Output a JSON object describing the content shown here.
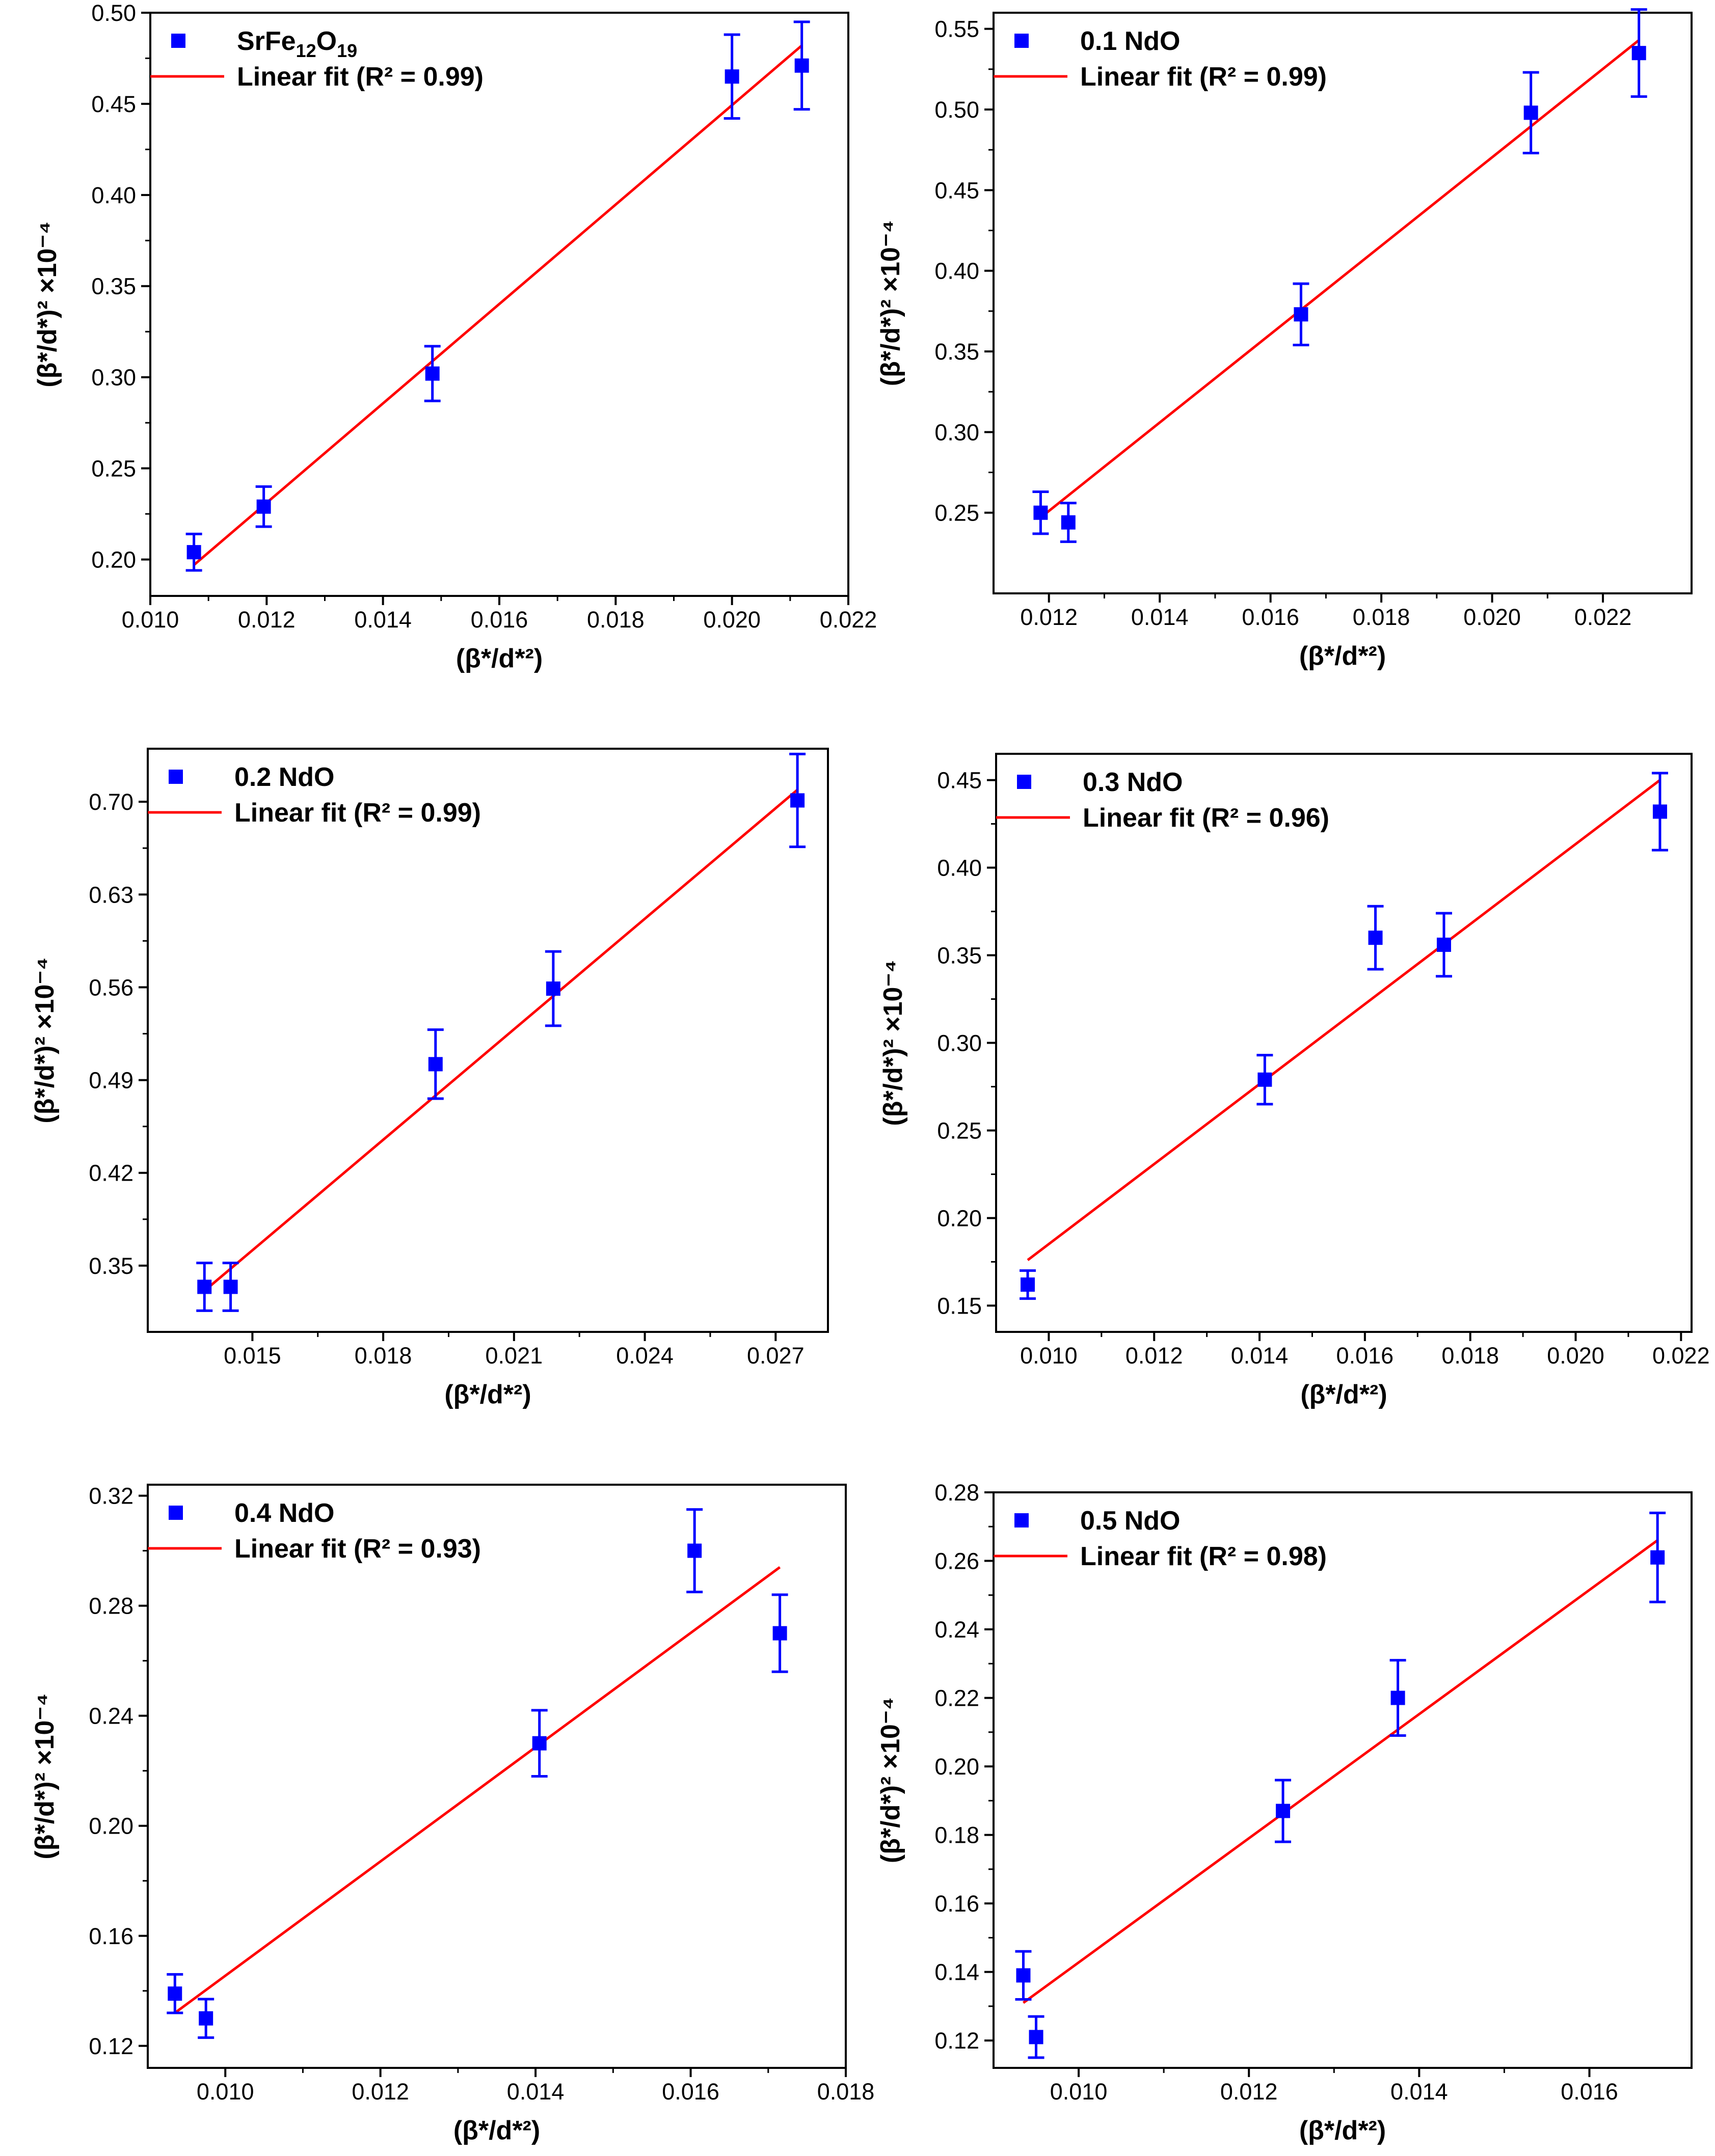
{
  "figure": {
    "x_axis_label": "(β*/d*²)",
    "y_axis_label": "(β*/d*)² ×10⁻⁴"
  },
  "colors": {
    "marker": "#0000ff",
    "fit_line": "#ff0000",
    "axes": "#000000"
  },
  "chart_data": [
    {
      "type": "scatter",
      "title": "",
      "xlabel": "(β*/d*²)",
      "ylabel": "(β*/d*)² ×10⁻⁴",
      "legend": {
        "series_name": "SrFe12O19",
        "series_base": "SrFe",
        "sub1": "12",
        "mid": "O",
        "sub2": "19",
        "fit_name": "Linear fit (R² = 0.99)"
      },
      "xlim": [
        0.01,
        0.022
      ],
      "ylim": [
        0.18,
        0.5
      ],
      "xticks": [
        0.01,
        0.012,
        0.014,
        0.016,
        0.018,
        0.02,
        0.022
      ],
      "xtick_labels": [
        "0.010",
        "0.012",
        "0.014",
        "0.016",
        "0.018",
        "0.020",
        "0.022"
      ],
      "yticks": [
        0.2,
        0.25,
        0.3,
        0.35,
        0.4,
        0.45,
        0.5
      ],
      "ytick_labels": [
        "0.20",
        "0.25",
        "0.30",
        "0.35",
        "0.40",
        "0.45",
        "0.50"
      ],
      "points": [
        {
          "x": 0.01075,
          "y": 0.204,
          "err": 0.01
        },
        {
          "x": 0.01195,
          "y": 0.229,
          "err": 0.011
        },
        {
          "x": 0.01485,
          "y": 0.302,
          "err": 0.015
        },
        {
          "x": 0.02,
          "y": 0.465,
          "err": 0.023
        },
        {
          "x": 0.0212,
          "y": 0.471,
          "err": 0.024
        }
      ],
      "fit": {
        "x": [
          0.01075,
          0.0212
        ],
        "y": [
          0.197,
          0.482
        ]
      }
    },
    {
      "type": "scatter",
      "title": "",
      "xlabel": "(β*/d*²)",
      "ylabel": "(β*/d*)² ×10⁻⁴",
      "legend": {
        "series_name": "0.1 NdO",
        "fit_name": "Linear fit (R² = 0.99)"
      },
      "xlim": [
        0.011,
        0.0236
      ],
      "ylim": [
        0.2,
        0.56
      ],
      "xticks": [
        0.012,
        0.014,
        0.016,
        0.018,
        0.02,
        0.022
      ],
      "xtick_labels": [
        "0.012",
        "0.014",
        "0.016",
        "0.018",
        "0.020",
        "0.022"
      ],
      "yticks": [
        0.25,
        0.3,
        0.35,
        0.4,
        0.45,
        0.5,
        0.55
      ],
      "ytick_labels": [
        "0.25",
        "0.30",
        "0.35",
        "0.40",
        "0.45",
        "0.50",
        "0.55"
      ],
      "points": [
        {
          "x": 0.01185,
          "y": 0.25,
          "err": 0.013
        },
        {
          "x": 0.01235,
          "y": 0.244,
          "err": 0.012
        },
        {
          "x": 0.01655,
          "y": 0.373,
          "err": 0.019
        },
        {
          "x": 0.0207,
          "y": 0.498,
          "err": 0.025
        },
        {
          "x": 0.02265,
          "y": 0.535,
          "err": 0.027
        }
      ],
      "fit": {
        "x": [
          0.01185,
          0.02265
        ],
        "y": [
          0.247,
          0.543
        ]
      }
    },
    {
      "type": "scatter",
      "title": "",
      "xlabel": "(β*/d*²)",
      "ylabel": "(β*/d*)² ×10⁻⁴",
      "legend": {
        "series_name": "0.2 NdO",
        "fit_name": "Linear fit (R² = 0.99)"
      },
      "xlim": [
        0.0126,
        0.0282
      ],
      "ylim": [
        0.3,
        0.74
      ],
      "xticks": [
        0.015,
        0.018,
        0.021,
        0.024,
        0.027
      ],
      "xtick_labels": [
        "0.015",
        "0.018",
        "0.021",
        "0.024",
        "0.027"
      ],
      "yticks": [
        0.35,
        0.42,
        0.49,
        0.56,
        0.63,
        0.7
      ],
      "ytick_labels": [
        "0.35",
        "0.42",
        "0.49",
        "0.56",
        "0.63",
        "0.70"
      ],
      "points": [
        {
          "x": 0.0139,
          "y": 0.334,
          "err": 0.018
        },
        {
          "x": 0.0145,
          "y": 0.334,
          "err": 0.018
        },
        {
          "x": 0.0192,
          "y": 0.502,
          "err": 0.026
        },
        {
          "x": 0.0219,
          "y": 0.559,
          "err": 0.028
        },
        {
          "x": 0.0275,
          "y": 0.701,
          "err": 0.035
        }
      ],
      "fit": {
        "x": [
          0.0139,
          0.0275
        ],
        "y": [
          0.331,
          0.709
        ]
      }
    },
    {
      "type": "scatter",
      "title": "",
      "xlabel": "(β*/d*²)",
      "ylabel": "(β*/d*)² ×10⁻⁴",
      "legend": {
        "series_name": "0.3 NdO",
        "fit_name": "Linear fit (R² = 0.96)"
      },
      "xlim": [
        0.009,
        0.0222
      ],
      "ylim": [
        0.135,
        0.465
      ],
      "xticks": [
        0.01,
        0.012,
        0.014,
        0.016,
        0.018,
        0.02,
        0.022
      ],
      "xtick_labels": [
        "0.010",
        "0.012",
        "0.014",
        "0.016",
        "0.018",
        "0.020",
        "0.022"
      ],
      "yticks": [
        0.15,
        0.2,
        0.25,
        0.3,
        0.35,
        0.4,
        0.45
      ],
      "ytick_labels": [
        "0.15",
        "0.20",
        "0.25",
        "0.30",
        "0.35",
        "0.40",
        "0.45"
      ],
      "points": [
        {
          "x": 0.0096,
          "y": 0.162,
          "err": 0.008
        },
        {
          "x": 0.0141,
          "y": 0.279,
          "err": 0.014
        },
        {
          "x": 0.0162,
          "y": 0.36,
          "err": 0.018
        },
        {
          "x": 0.0175,
          "y": 0.356,
          "err": 0.018
        },
        {
          "x": 0.0216,
          "y": 0.432,
          "err": 0.022
        }
      ],
      "fit": {
        "x": [
          0.0096,
          0.0216
        ],
        "y": [
          0.176,
          0.45
        ]
      }
    },
    {
      "type": "scatter",
      "title": "",
      "xlabel": "(β*/d*²)",
      "ylabel": "(β*/d*)² ×10⁻⁴",
      "legend": {
        "series_name": "0.4 NdO",
        "fit_name": "Linear fit (R² = 0.93)"
      },
      "xlim": [
        0.009,
        0.018
      ],
      "ylim": [
        0.112,
        0.324
      ],
      "xticks": [
        0.01,
        0.012,
        0.014,
        0.016,
        0.018
      ],
      "xtick_labels": [
        "0.010",
        "0.012",
        "0.014",
        "0.016",
        "0.018"
      ],
      "yticks": [
        0.12,
        0.16,
        0.2,
        0.24,
        0.28,
        0.32
      ],
      "ytick_labels": [
        "0.12",
        "0.16",
        "0.20",
        "0.24",
        "0.28",
        "0.32"
      ],
      "points": [
        {
          "x": 0.00935,
          "y": 0.139,
          "err": 0.007
        },
        {
          "x": 0.00975,
          "y": 0.13,
          "err": 0.007
        },
        {
          "x": 0.01405,
          "y": 0.23,
          "err": 0.012
        },
        {
          "x": 0.01605,
          "y": 0.3,
          "err": 0.015
        },
        {
          "x": 0.01715,
          "y": 0.27,
          "err": 0.014
        }
      ],
      "fit": {
        "x": [
          0.00935,
          0.01715
        ],
        "y": [
          0.132,
          0.294
        ]
      }
    },
    {
      "type": "scatter",
      "title": "",
      "xlabel": "(β*/d*²)",
      "ylabel": "(β*/d*)² ×10⁻⁴",
      "legend": {
        "series_name": "0.5 NdO",
        "fit_name": "Linear fit (R² = 0.98)"
      },
      "xlim": [
        0.009,
        0.0172
      ],
      "ylim": [
        0.112,
        0.28
      ],
      "xticks": [
        0.01,
        0.012,
        0.014,
        0.016
      ],
      "xtick_labels": [
        "0.010",
        "0.012",
        "0.014",
        "0.016"
      ],
      "yticks": [
        0.12,
        0.14,
        0.16,
        0.18,
        0.2,
        0.22,
        0.24,
        0.26,
        0.28
      ],
      "ytick_labels": [
        "0.12",
        "0.14",
        "0.16",
        "0.18",
        "0.20",
        "0.22",
        "0.24",
        "0.26",
        "0.28"
      ],
      "points": [
        {
          "x": 0.00935,
          "y": 0.139,
          "err": 0.007
        },
        {
          "x": 0.0095,
          "y": 0.121,
          "err": 0.006
        },
        {
          "x": 0.0124,
          "y": 0.187,
          "err": 0.009
        },
        {
          "x": 0.01375,
          "y": 0.22,
          "err": 0.011
        },
        {
          "x": 0.0168,
          "y": 0.261,
          "err": 0.013
        }
      ],
      "fit": {
        "x": [
          0.00935,
          0.0168
        ],
        "y": [
          0.131,
          0.266
        ]
      }
    }
  ]
}
